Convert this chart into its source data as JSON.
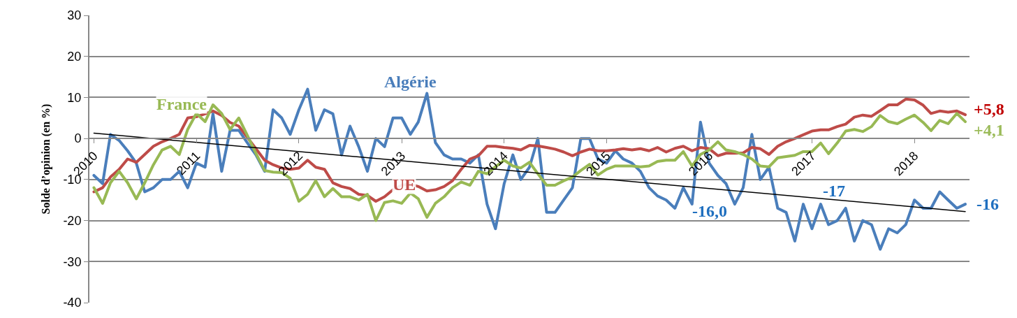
{
  "chart_data": {
    "type": "line",
    "ylabel": "Solde d’opinion (en %)",
    "x": [
      "2010-01",
      "2010-02",
      "2010-03",
      "2010-04",
      "2010-05",
      "2010-06",
      "2010-07",
      "2010-08",
      "2010-09",
      "2010-10",
      "2010-11",
      "2010-12",
      "2011-01",
      "2011-02",
      "2011-03",
      "2011-04",
      "2011-05",
      "2011-06",
      "2011-07",
      "2011-08",
      "2011-09",
      "2011-10",
      "2011-11",
      "2011-12",
      "2012-01",
      "2012-02",
      "2012-03",
      "2012-04",
      "2012-05",
      "2012-06",
      "2012-07",
      "2012-08",
      "2012-09",
      "2012-10",
      "2012-11",
      "2012-12",
      "2013-01",
      "2013-02",
      "2013-03",
      "2013-04",
      "2013-05",
      "2013-06",
      "2013-07",
      "2013-08",
      "2013-09",
      "2013-10",
      "2013-11",
      "2013-12",
      "2014-01",
      "2014-02",
      "2014-03",
      "2014-04",
      "2014-05",
      "2014-06",
      "2014-07",
      "2014-08",
      "2014-09",
      "2014-10",
      "2014-11",
      "2014-12",
      "2015-01",
      "2015-02",
      "2015-03",
      "2015-04",
      "2015-05",
      "2015-06",
      "2015-07",
      "2015-08",
      "2015-09",
      "2015-10",
      "2015-11",
      "2015-12",
      "2016-01",
      "2016-02",
      "2016-03",
      "2016-04",
      "2016-05",
      "2016-06",
      "2016-07",
      "2016-08",
      "2016-09",
      "2016-10",
      "2016-11",
      "2016-12",
      "2017-01",
      "2017-02",
      "2017-03",
      "2017-04",
      "2017-05",
      "2017-06",
      "2017-07",
      "2017-08",
      "2017-09",
      "2017-10",
      "2017-11",
      "2017-12",
      "2018-01",
      "2018-02",
      "2018-03",
      "2018-04",
      "2018-05",
      "2018-06",
      "2018-07"
    ],
    "series": [
      {
        "name": "Algérie",
        "color": "#4a7ebb",
        "values": [
          -9,
          -11,
          1,
          -0.5,
          -3,
          -6,
          -13,
          -12,
          -10,
          -10,
          -8,
          -12,
          -6,
          -7,
          6,
          -8,
          2,
          2,
          -1,
          -4,
          -8,
          7,
          5,
          1,
          7,
          12,
          2,
          7,
          6,
          -4,
          3,
          -2,
          -8,
          0,
          -2,
          5,
          5,
          1,
          4,
          11,
          -1,
          -4,
          -5,
          -5,
          -6,
          -4,
          -16,
          -22,
          -11,
          -4,
          -10,
          -7,
          0,
          -18,
          -18,
          -15,
          -12,
          0,
          0,
          -5,
          -6,
          -3,
          -5,
          -6,
          -8,
          -12,
          -14,
          -15,
          -17,
          -12,
          -16,
          4,
          -6,
          -9,
          -11,
          -16,
          -12,
          1,
          -10,
          -7,
          -17,
          -18,
          -25,
          -16,
          -22,
          -16,
          -21,
          -20,
          -17,
          -25,
          -20,
          -21,
          -27,
          -22,
          -23,
          -21,
          -15,
          -17,
          -17,
          -13,
          -15,
          -17,
          -16
        ]
      },
      {
        "name": "UE",
        "color": "#be4b48",
        "values": [
          -13,
          -12,
          -9.4,
          -7.5,
          -5,
          -5.8,
          -3.9,
          -1.9,
          -0.8,
          0,
          1,
          5,
          5.3,
          6,
          6.7,
          5.6,
          3.9,
          3,
          0.3,
          -2.5,
          -5.3,
          -6.4,
          -7.2,
          -7.5,
          -7.2,
          -5.3,
          -7,
          -7.5,
          -10.8,
          -11.7,
          -12.2,
          -13.6,
          -13.9,
          -15.3,
          -14.2,
          -12.5,
          -11.4,
          -11.1,
          -11.7,
          -12.8,
          -12.5,
          -11.7,
          -10.3,
          -7.5,
          -5,
          -4.2,
          -1.9,
          -1.9,
          -2.2,
          -2.4,
          -2.8,
          -1.7,
          -1.8,
          -2.2,
          -2.6,
          -3.3,
          -4.2,
          -3.3,
          -2.6,
          -3,
          -3,
          -2.8,
          -2.5,
          -2.8,
          -2.5,
          -3,
          -2.2,
          -3.3,
          -2.4,
          -1.9,
          -3,
          -2.2,
          -2.5,
          -4.2,
          -3.6,
          -3.6,
          -3.5,
          -2.2,
          -2.5,
          -3.9,
          -1.9,
          -0.8,
          0,
          0.9,
          1.8,
          2.1,
          2.1,
          2.9,
          3.5,
          5.2,
          5.7,
          5.4,
          6.8,
          8.2,
          8.2,
          9.6,
          9.4,
          8.1,
          6.1,
          6.7,
          6.4,
          6.7,
          5.8
        ]
      },
      {
        "name": "France",
        "color": "#98b954",
        "values": [
          -12,
          -15.8,
          -10.8,
          -8,
          -10.8,
          -14.7,
          -10.8,
          -6.4,
          -2.8,
          -1.9,
          -3.9,
          2.2,
          6.1,
          4.1,
          8.2,
          6.1,
          2.2,
          5,
          0.8,
          -3.6,
          -7.8,
          -8.2,
          -8.3,
          -9.7,
          -15.3,
          -13.6,
          -10.3,
          -14.2,
          -12.2,
          -14.2,
          -14.2,
          -15,
          -13.6,
          -20,
          -15.6,
          -15.2,
          -15.8,
          -13.3,
          -14.7,
          -19.2,
          -15.8,
          -14.2,
          -12,
          -10.6,
          -11.4,
          -8,
          -8.6,
          -6.9,
          -5.3,
          -6.7,
          -7.2,
          -5.8,
          -8.6,
          -11.4,
          -11.4,
          -10.3,
          -9.4,
          -7.8,
          -6.3,
          -8.9,
          -7.5,
          -6.7,
          -6.7,
          -6.7,
          -6.9,
          -6.7,
          -5.6,
          -5.3,
          -5.3,
          -3.2,
          -6.7,
          -3.9,
          -2.8,
          -0.8,
          -2.8,
          -3.2,
          -3.9,
          -5,
          -6.7,
          -6.9,
          -4.7,
          -4.4,
          -4.1,
          -3.2,
          -3.2,
          -1.1,
          -3.7,
          -1.1,
          1.8,
          2.2,
          1.7,
          2.9,
          5.6,
          4.1,
          3.6,
          4.7,
          5.7,
          3.9,
          1.9,
          4.4,
          3.6,
          6.1,
          4.1
        ]
      },
      {
        "color": "#000000",
        "x": [
          "2010-01",
          "2018-07"
        ],
        "values": [
          1.3,
          -17.8
        ]
      }
    ],
    "annotations": [
      {
        "text": "+5,8",
        "x": "2018-07",
        "y": 5.8
      },
      {
        "text": "+4,1",
        "x": "2018-07",
        "y": 4.1
      },
      {
        "text": "-16",
        "x": "2018-07",
        "y": -16
      },
      {
        "text": "-16,0",
        "x": "2015-11",
        "y": -16
      },
      "-17"
    ],
    "xlim": [
      "2009-12-16",
      "2018-07-16"
    ],
    "xticks": [
      {
        "value": "2010-01",
        "label": "2010"
      },
      {
        "value": "2011-01",
        "label": "2011"
      },
      {
        "value": "2012-01",
        "label": "2012"
      },
      {
        "value": "2013-01",
        "label": "2013"
      },
      {
        "value": "2014-01",
        "label": "2014"
      },
      {
        "value": "2015-01",
        "label": "2015"
      },
      {
        "value": "2016-01",
        "label": "2016"
      },
      {
        "value": "2017-01",
        "label": "2017"
      },
      {
        "value": "2018-01",
        "label": "2018"
      }
    ],
    "ylim": [
      -40,
      30
    ],
    "yticks": [
      -40,
      -30,
      -20,
      -10,
      0,
      10,
      20,
      30
    ],
    "grid": "y",
    "legend": false,
    "line_style": "solid",
    "marker": "none"
  }
}
